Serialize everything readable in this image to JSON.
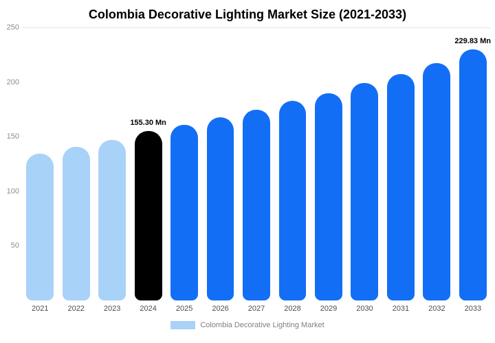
{
  "title": "Colombia Decorative Lighting Market Size (2021-2033)",
  "legend": {
    "label": "Colombia Decorative Lighting Market"
  },
  "colors": {
    "historical": "#A8D2F8",
    "base_year": "#000000",
    "forecast": "#136EF6",
    "gridline": "#E3E3E3",
    "axis_text": "#8C8C8C",
    "x_text": "#4D4D4D"
  },
  "chart_data": {
    "type": "bar",
    "title": "Colombia Decorative Lighting Market Size (2021-2033)",
    "categories": [
      "2021",
      "2022",
      "2023",
      "2024",
      "2025",
      "2026",
      "2027",
      "2028",
      "2029",
      "2030",
      "2031",
      "2032",
      "2033"
    ],
    "values": [
      134.5,
      141.0,
      147.0,
      155.3,
      160.5,
      167.5,
      174.5,
      182.5,
      190.0,
      199.0,
      207.0,
      217.5,
      229.83
    ],
    "bar_colors": [
      "#A8D2F8",
      "#A8D2F8",
      "#A8D2F8",
      "#000000",
      "#136EF6",
      "#136EF6",
      "#136EF6",
      "#136EF6",
      "#136EF6",
      "#136EF6",
      "#136EF6",
      "#136EF6",
      "#136EF6"
    ],
    "annotations": [
      {
        "category": "2024",
        "text": "155.30 Mn"
      },
      {
        "category": "2033",
        "text": "229.83 Mn"
      }
    ],
    "xlabel": "",
    "ylabel": "",
    "ylim": [
      0,
      250
    ],
    "yticks": [
      50,
      100,
      150,
      200,
      250
    ],
    "grid": "top-line-only",
    "legend_entries": [
      "Colombia Decorative Lighting Market"
    ],
    "legend_position": "bottom",
    "unit": "Mn"
  }
}
